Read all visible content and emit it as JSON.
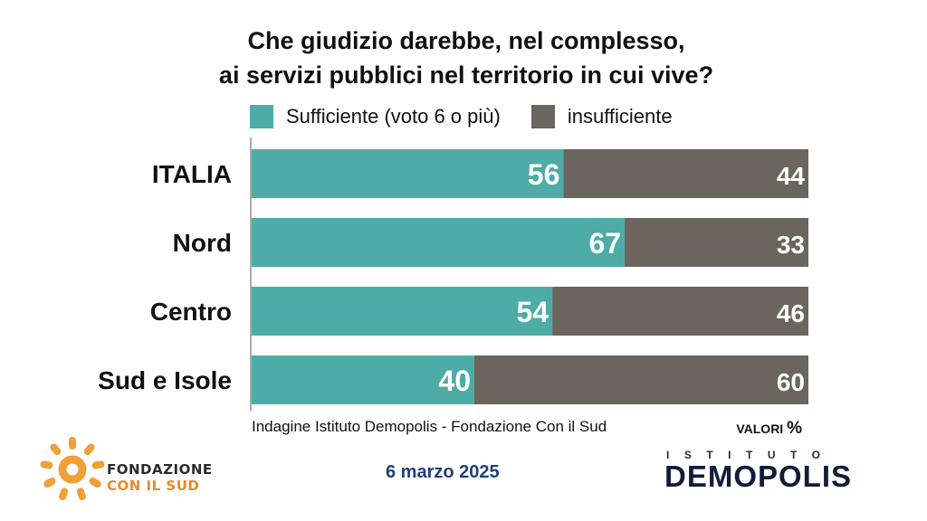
{
  "title_line1": "Che giudizio darebbe, nel complesso,",
  "title_line2": "ai servizi pubblici nel territorio in cui vive?",
  "colors": {
    "sufficient": "#4dada6",
    "insufficient": "#6c655e",
    "date": "#1f3f7a",
    "brand_orange": "#f0a035"
  },
  "chart_data": {
    "type": "bar",
    "orientation": "horizontal",
    "stacked": true,
    "categories": [
      "ITALIA",
      "Nord",
      "Centro",
      "Sud e Isole"
    ],
    "series": [
      {
        "name": "Sufficiente (voto 6 o più)",
        "values": [
          56,
          67,
          54,
          40
        ],
        "color": "#4dada6"
      },
      {
        "name": "insufficiente",
        "values": [
          44,
          33,
          46,
          60
        ],
        "color": "#6c655e"
      }
    ],
    "xlim": [
      0,
      100
    ],
    "grid": false,
    "legend": "top"
  },
  "source": "Indagine Istituto Demopolis - Fondazione Con il Sud",
  "units_label": "VALORI",
  "units_symbol": "%",
  "date": "6 marzo 2025",
  "logo_fcs_line1": "FONDAZIONE",
  "logo_fcs_line2": "CON IL SUD",
  "logo_demopolis_top": "ISTITUTO",
  "logo_demopolis_word": "DEMOPOLIS"
}
